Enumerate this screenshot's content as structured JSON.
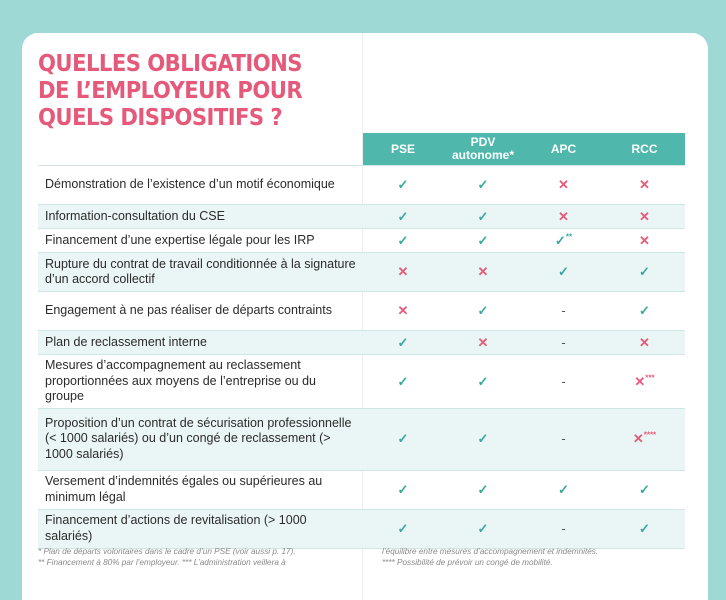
{
  "title_lines": [
    "QUELLES OBLIGATIONS",
    "DE L’EMPLOYEUR POUR",
    "QUELS DISPOSITIFS ?"
  ],
  "columns": [
    {
      "label": "PSE",
      "sub": ""
    },
    {
      "label": "PDV",
      "sub": "autonome*"
    },
    {
      "label": "APC",
      "sub": ""
    },
    {
      "label": "RCC",
      "sub": ""
    }
  ],
  "rows": [
    {
      "label": "Démonstration de l’existence d’un motif économique",
      "cells": [
        {
          "m": "yes",
          "sup": ""
        },
        {
          "m": "yes",
          "sup": ""
        },
        {
          "m": "no",
          "sup": ""
        },
        {
          "m": "no",
          "sup": ""
        }
      ]
    },
    {
      "label": "Information-consultation du CSE",
      "cells": [
        {
          "m": "yes",
          "sup": ""
        },
        {
          "m": "yes",
          "sup": ""
        },
        {
          "m": "no",
          "sup": ""
        },
        {
          "m": "no",
          "sup": ""
        }
      ]
    },
    {
      "label": "Financement d’une expertise légale pour les IRP",
      "cells": [
        {
          "m": "yes",
          "sup": ""
        },
        {
          "m": "yes",
          "sup": ""
        },
        {
          "m": "yes",
          "sup": "**"
        },
        {
          "m": "no",
          "sup": ""
        }
      ]
    },
    {
      "label": "Rupture du contrat de travail conditionnée à la signature d’un accord collectif",
      "cells": [
        {
          "m": "no",
          "sup": ""
        },
        {
          "m": "no",
          "sup": ""
        },
        {
          "m": "yes",
          "sup": ""
        },
        {
          "m": "yes",
          "sup": ""
        }
      ]
    },
    {
      "label": "Engagement à ne pas réaliser de départs contraints",
      "cells": [
        {
          "m": "no",
          "sup": ""
        },
        {
          "m": "yes",
          "sup": ""
        },
        {
          "m": "na",
          "sup": ""
        },
        {
          "m": "yes",
          "sup": ""
        }
      ]
    },
    {
      "label": "Plan de reclassement interne",
      "cells": [
        {
          "m": "yes",
          "sup": ""
        },
        {
          "m": "no",
          "sup": ""
        },
        {
          "m": "na",
          "sup": ""
        },
        {
          "m": "no",
          "sup": ""
        }
      ]
    },
    {
      "label": "Mesures d’accompagnement au reclassement proportionnées aux moyens de l’entreprise ou du groupe",
      "cells": [
        {
          "m": "yes",
          "sup": ""
        },
        {
          "m": "yes",
          "sup": ""
        },
        {
          "m": "na",
          "sup": ""
        },
        {
          "m": "no",
          "sup": "***"
        }
      ]
    },
    {
      "label": "Proposition d’un contrat de sécurisation professionnelle (< 1000 salariés) ou d’un congé de reclassement (> 1000 salariés)",
      "cells": [
        {
          "m": "yes",
          "sup": ""
        },
        {
          "m": "yes",
          "sup": ""
        },
        {
          "m": "na",
          "sup": ""
        },
        {
          "m": "no",
          "sup": "****"
        }
      ]
    },
    {
      "label": "Versement d’indemnités égales ou supérieures au minimum légal",
      "cells": [
        {
          "m": "yes",
          "sup": ""
        },
        {
          "m": "yes",
          "sup": ""
        },
        {
          "m": "yes",
          "sup": ""
        },
        {
          "m": "yes",
          "sup": ""
        }
      ]
    },
    {
      "label": "Financement d’actions de revitalisation (> 1000 salariés)",
      "cells": [
        {
          "m": "yes",
          "sup": ""
        },
        {
          "m": "yes",
          "sup": ""
        },
        {
          "m": "na",
          "sup": ""
        },
        {
          "m": "yes",
          "sup": ""
        }
      ]
    }
  ],
  "symbols": {
    "yes": "✓",
    "no": "✕",
    "na": "-"
  },
  "footnotes": {
    "left": [
      "* Plan de départs volontaires dans le cadre d’un PSE (voir aussi p. 17).",
      "** Financement à 80% par l’employeur. *** L’administration veillera à"
    ],
    "right": [
      "l’équilibre entre mesures d’accompagnement et indemnités.",
      "**** Possibilité de prévoir un congé de mobilité."
    ]
  },
  "colors": {
    "accent_pink": "#e55a7a",
    "header_teal": "#4fb7ac",
    "check_teal": "#3aa89d",
    "background": "#9fd9d6"
  }
}
